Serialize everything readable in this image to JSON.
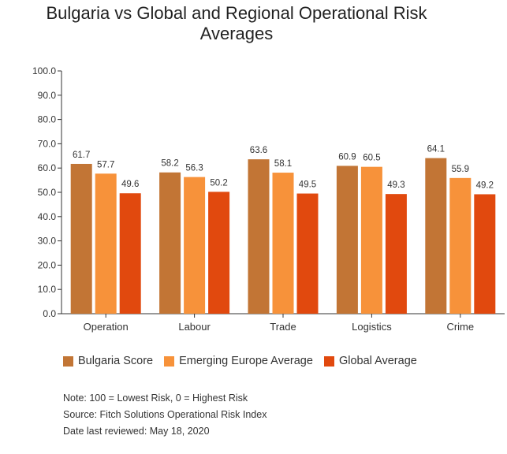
{
  "title_line1": "Bulgaria vs Global and Regional Operational Risk",
  "title_line2": "Averages",
  "chart_data": {
    "type": "bar",
    "title": "Bulgaria vs Global and Regional Operational Risk Averages",
    "categories": [
      "Operation",
      "Labour",
      "Trade",
      "Logistics",
      "Crime"
    ],
    "series": [
      {
        "name": "Bulgaria Score",
        "color": "#c27535",
        "values": [
          61.7,
          58.2,
          63.6,
          60.9,
          64.1
        ]
      },
      {
        "name": "Emerging Europe Average",
        "color": "#f7923a",
        "values": [
          57.7,
          56.3,
          58.1,
          60.5,
          55.9
        ]
      },
      {
        "name": "Global Average",
        "color": "#e1490e",
        "values": [
          49.6,
          50.2,
          49.5,
          49.3,
          49.2
        ]
      }
    ],
    "ylim": [
      0,
      100
    ],
    "yticks": [
      "0.0",
      "10.0",
      "20.0",
      "30.0",
      "40.0",
      "50.0",
      "60.0",
      "70.0",
      "80.0",
      "90.0",
      "100.0"
    ],
    "grid": false,
    "legend": "bottom"
  },
  "notes": {
    "note": "Note: 100 = Lowest Risk, 0 = Highest Risk",
    "source": "Source: Fitch Solutions Operational Risk Index",
    "date": "Date last reviewed: May 18, 2020"
  }
}
